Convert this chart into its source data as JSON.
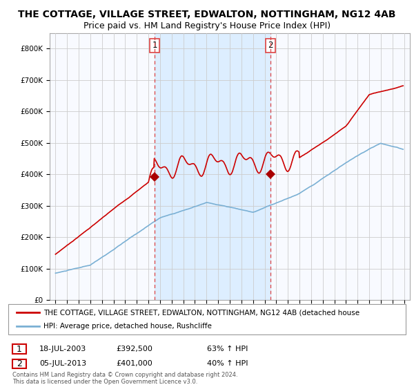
{
  "title": "THE COTTAGE, VILLAGE STREET, EDWALTON, NOTTINGHAM, NG12 4AB",
  "subtitle": "Price paid vs. HM Land Registry's House Price Index (HPI)",
  "ylim": [
    0,
    850000
  ],
  "yticks": [
    0,
    100000,
    200000,
    300000,
    400000,
    500000,
    600000,
    700000,
    800000
  ],
  "ytick_labels": [
    "£0",
    "£100K",
    "£200K",
    "£300K",
    "£400K",
    "£500K",
    "£600K",
    "£700K",
    "£800K"
  ],
  "xlim_start": 1994.5,
  "xlim_end": 2025.5,
  "transaction1": {
    "date": "18-JUL-2003",
    "year": 2003.54,
    "price": 392500,
    "label": "1",
    "pct": "63% ↑ HPI"
  },
  "transaction2": {
    "date": "05-JUL-2013",
    "year": 2013.51,
    "price": 401000,
    "label": "2",
    "pct": "40% ↑ HPI"
  },
  "red_line_color": "#cc0000",
  "blue_line_color": "#7ab0d4",
  "dashed_line_color": "#dd4444",
  "marker_color": "#aa0000",
  "grid_color": "#cccccc",
  "shade_color": "#ddeeff",
  "background_color": "#ffffff",
  "ax_bg_color": "#f8faff",
  "legend_line1": "THE COTTAGE, VILLAGE STREET, EDWALTON, NOTTINGHAM, NG12 4AB (detached house",
  "legend_line2": "HPI: Average price, detached house, Rushcliffe",
  "footnote": "Contains HM Land Registry data © Crown copyright and database right 2024.\nThis data is licensed under the Open Government Licence v3.0.",
  "title_fontsize": 10.0,
  "subtitle_fontsize": 9.0,
  "tick_fontsize": 7.5,
  "legend_fontsize": 7.5,
  "annotation_fontsize": 8
}
